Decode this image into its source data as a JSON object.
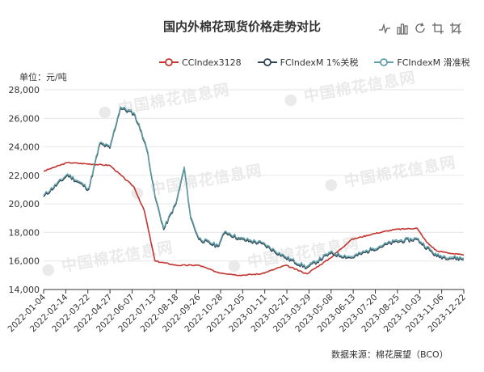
{
  "title": "国内外棉花现货价格走势对比",
  "unit": "单位：元/吨",
  "source": "数据来源：棉花展望（BCO）",
  "watermark": "中国棉花信息网",
  "toolbox": [
    "line-chart-icon",
    "bar-chart-icon",
    "restore-icon",
    "data-zoom-icon",
    "zoom-reset-icon"
  ],
  "colors": {
    "cc": "#c23531",
    "fc1": "#2f4554",
    "fcs": "#61a0a8"
  },
  "chart_data": {
    "type": "line",
    "ylim": [
      14000,
      28000
    ],
    "yticks": [
      14000,
      16000,
      18000,
      20000,
      22000,
      24000,
      26000,
      28000
    ],
    "ytick_labels": [
      "14,000",
      "16,000",
      "18,000",
      "20,000",
      "22,000",
      "24,000",
      "26,000",
      "28,000"
    ],
    "xlim": [
      "2022-01-04",
      "2023-12-22"
    ],
    "xtick_labels": [
      "2022-01-04",
      "2022-02-14",
      "2022-03-22",
      "2022-04-27",
      "2022-06-07",
      "2022-07-13",
      "2022-08-18",
      "2022-09-26",
      "2022-10-28",
      "2022-12-05",
      "2023-01-11",
      "2023-02-21",
      "2023-03-29",
      "2023-05-08",
      "2023-06-13",
      "2023-07-20",
      "2023-08-25",
      "2023-10-03",
      "2023-11-06",
      "2023-12-22"
    ],
    "legend_position": "top",
    "series": [
      {
        "name": "CCIndex3128",
        "color": "#c23531",
        "points": [
          [
            "2022-01-04",
            22300
          ],
          [
            "2022-02-14",
            22900
          ],
          [
            "2022-03-22",
            22800
          ],
          [
            "2022-04-27",
            22700
          ],
          [
            "2022-06-07",
            21200
          ],
          [
            "2022-06-25",
            19500
          ],
          [
            "2022-07-13",
            16000
          ],
          [
            "2022-08-18",
            15700
          ],
          [
            "2022-09-26",
            15700
          ],
          [
            "2022-10-28",
            15200
          ],
          [
            "2022-12-05",
            15000
          ],
          [
            "2023-01-11",
            15100
          ],
          [
            "2023-02-21",
            15700
          ],
          [
            "2023-03-29",
            15100
          ],
          [
            "2023-05-08",
            16200
          ],
          [
            "2023-06-13",
            17500
          ],
          [
            "2023-07-20",
            17900
          ],
          [
            "2023-08-25",
            18200
          ],
          [
            "2023-10-03",
            18300
          ],
          [
            "2023-10-20",
            17300
          ],
          [
            "2023-11-06",
            16700
          ],
          [
            "2023-12-22",
            16400
          ]
        ]
      },
      {
        "name": "FCIndexM 1%关税",
        "color": "#2f4554",
        "points": [
          [
            "2022-01-04",
            20500
          ],
          [
            "2022-02-14",
            22000
          ],
          [
            "2022-03-22",
            21000
          ],
          [
            "2022-04-10",
            24200
          ],
          [
            "2022-04-27",
            23900
          ],
          [
            "2022-05-15",
            26700
          ],
          [
            "2022-06-07",
            26300
          ],
          [
            "2022-06-20",
            25000
          ],
          [
            "2022-07-01",
            23500
          ],
          [
            "2022-07-13",
            20500
          ],
          [
            "2022-07-28",
            18200
          ],
          [
            "2022-08-18",
            20000
          ],
          [
            "2022-09-01",
            22500
          ],
          [
            "2022-09-12",
            19000
          ],
          [
            "2022-09-26",
            17500
          ],
          [
            "2022-10-28",
            17000
          ],
          [
            "2022-11-10",
            18000
          ],
          [
            "2022-12-05",
            17500
          ],
          [
            "2023-01-11",
            17200
          ],
          [
            "2023-02-21",
            16200
          ],
          [
            "2023-03-29",
            15500
          ],
          [
            "2023-05-08",
            16500
          ],
          [
            "2023-06-13",
            16200
          ],
          [
            "2023-07-20",
            16800
          ],
          [
            "2023-08-25",
            17300
          ],
          [
            "2023-10-03",
            17500
          ],
          [
            "2023-11-06",
            16300
          ],
          [
            "2023-12-22",
            16100
          ]
        ]
      },
      {
        "name": "FCIndexM 滑准税",
        "color": "#61a0a8",
        "points": [
          [
            "2022-01-04",
            20600
          ],
          [
            "2022-02-14",
            22100
          ],
          [
            "2022-03-22",
            21100
          ],
          [
            "2022-04-10",
            24300
          ],
          [
            "2022-04-27",
            24000
          ],
          [
            "2022-05-15",
            26800
          ],
          [
            "2022-06-07",
            26400
          ],
          [
            "2022-06-20",
            25100
          ],
          [
            "2022-07-01",
            23600
          ],
          [
            "2022-07-13",
            20600
          ],
          [
            "2022-07-28",
            18300
          ],
          [
            "2022-08-18",
            20100
          ],
          [
            "2022-09-01",
            22600
          ],
          [
            "2022-09-12",
            19100
          ],
          [
            "2022-09-26",
            17600
          ],
          [
            "2022-10-28",
            17100
          ],
          [
            "2022-11-10",
            18100
          ],
          [
            "2022-12-05",
            17600
          ],
          [
            "2023-01-11",
            17300
          ],
          [
            "2023-02-21",
            16300
          ],
          [
            "2023-03-29",
            15600
          ],
          [
            "2023-05-08",
            16600
          ],
          [
            "2023-06-13",
            16300
          ],
          [
            "2023-07-20",
            16900
          ],
          [
            "2023-08-25",
            17400
          ],
          [
            "2023-10-03",
            17600
          ],
          [
            "2023-11-06",
            16400
          ],
          [
            "2023-12-22",
            16200
          ]
        ]
      }
    ]
  }
}
